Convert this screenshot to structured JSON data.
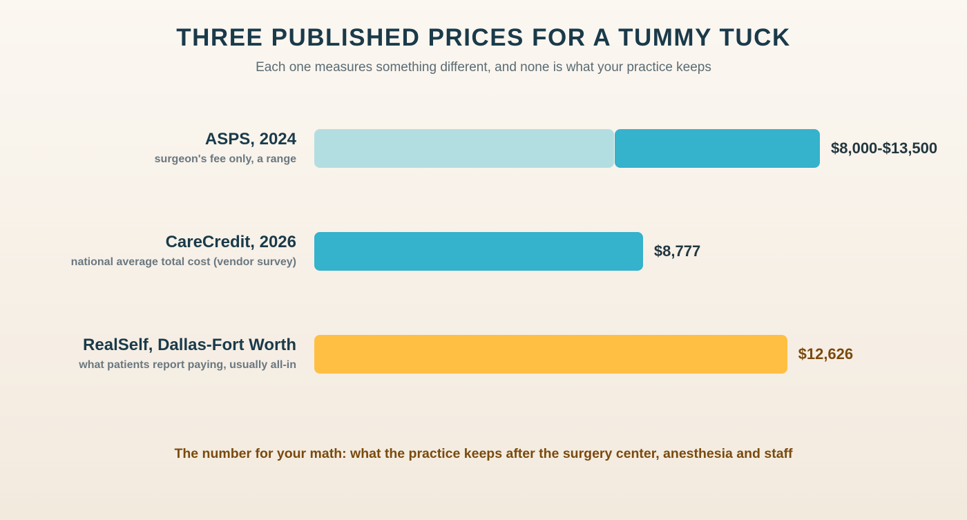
{
  "title": "THREE PUBLISHED PRICES FOR A TUMMY TUCK",
  "subtitle": "Each one measures something different, and none is what your practice keeps",
  "footer": "The number for your math: what the practice keeps after the surgery center, anesthesia and staff",
  "colors": {
    "range_low": "#b3dee1",
    "teal": "#35b2cc",
    "gold": "#ffbf42",
    "value_dark": "#23373f",
    "value_gold": "#7a4a0e"
  },
  "chart_data": {
    "type": "bar",
    "orientation": "horizontal",
    "xlim": [
      0,
      13500
    ],
    "categories": [
      "ASPS, 2024",
      "CareCredit, 2026",
      "RealSelf, Dallas-Fort Worth"
    ],
    "rows": [
      {
        "name": "ASPS, 2024",
        "desc": "surgeon's fee only, a range",
        "low": 8000,
        "high": 13500,
        "value_label": "$8,000-$13,500",
        "color": "#35b2cc",
        "low_color": "#b3dee1",
        "value_color": "#23373f"
      },
      {
        "name": "CareCredit, 2026",
        "desc": "national average total cost (vendor survey)",
        "value": 8777,
        "value_label": "$8,777",
        "color": "#35b2cc",
        "value_color": "#23373f"
      },
      {
        "name": "RealSelf, Dallas-Fort Worth",
        "desc": "what patients report paying, usually all-in",
        "value": 12626,
        "value_label": "$12,626",
        "color": "#ffbf42",
        "value_color": "#7a4a0e"
      }
    ]
  }
}
